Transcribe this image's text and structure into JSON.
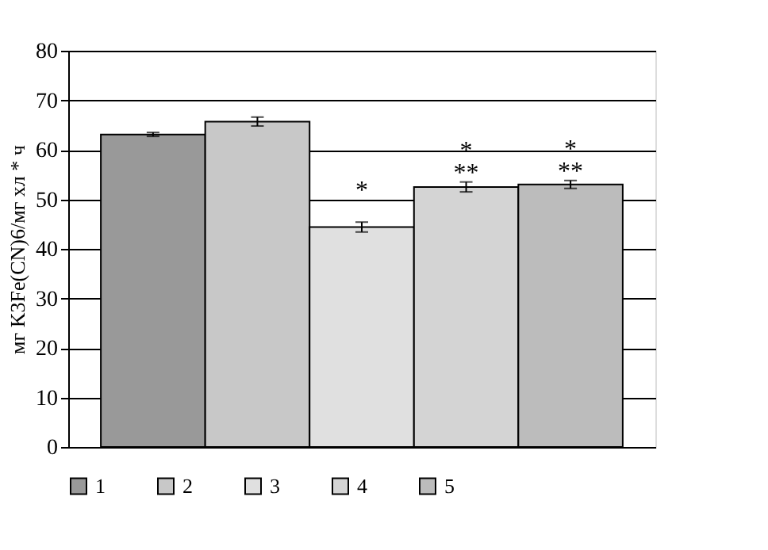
{
  "chart_data": {
    "type": "bar",
    "ylabel": "мг K3Fe(CN)6/мг хл * ч",
    "categories": [
      null
    ],
    "series": [
      {
        "name": "1",
        "color": "#999999",
        "values": [
          63.1
        ],
        "errors": [
          0.4
        ]
      },
      {
        "name": "2",
        "color": "#c8c8c8",
        "values": [
          65.7
        ],
        "errors": [
          0.9
        ]
      },
      {
        "name": "3",
        "color": "#e0e0e0",
        "values": [
          44.4
        ],
        "errors": [
          1.0
        ],
        "value_labels": [
          "*"
        ]
      },
      {
        "name": "4",
        "color": "#d4d4d4",
        "values": [
          52.5
        ],
        "errors": [
          1.0
        ],
        "value_labels": [
          "*\n**"
        ]
      },
      {
        "name": "5",
        "color": "#bcbcbc",
        "values": [
          53.0
        ],
        "errors": [
          0.8
        ],
        "value_labels": [
          "*\n**"
        ]
      }
    ],
    "ylim": [
      0,
      80
    ],
    "yticks": [
      0,
      10,
      20,
      30,
      40,
      50,
      60,
      70,
      80
    ],
    "grid": "y",
    "legend": "bottom",
    "tick_labels": "y"
  }
}
